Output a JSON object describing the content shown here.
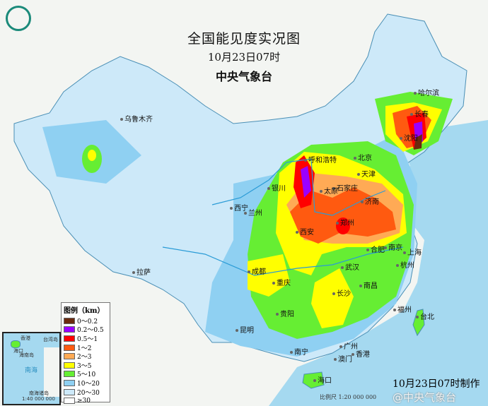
{
  "header": {
    "title": "全国能见度实况图",
    "time": "10月23日07时",
    "issuer": "中央气象台"
  },
  "logo": {
    "icon": "cma-logo-icon"
  },
  "legend": {
    "title": "图例（km）",
    "items": [
      {
        "label": "0～0.2",
        "color": "#6b2a0e"
      },
      {
        "label": "0.2～0.5",
        "color": "#9a00ff"
      },
      {
        "label": "0.5～1",
        "color": "#ff0000"
      },
      {
        "label": "1～2",
        "color": "#ff5a10"
      },
      {
        "label": "2～3",
        "color": "#ffaa55"
      },
      {
        "label": "3～5",
        "color": "#ffff00"
      },
      {
        "label": "5～10",
        "color": "#66ee33"
      },
      {
        "label": "10～20",
        "color": "#8fd0f2"
      },
      {
        "label": "20～30",
        "color": "#cde9f9"
      },
      {
        "label": "≥30",
        "color": "#ffffff"
      }
    ]
  },
  "cities": [
    {
      "name": "乌鲁木齐"
    },
    {
      "name": "哈尔滨"
    },
    {
      "name": "长春"
    },
    {
      "name": "沈阳"
    },
    {
      "name": "呼和浩特"
    },
    {
      "name": "北京"
    },
    {
      "name": "天津"
    },
    {
      "name": "银川"
    },
    {
      "name": "石家庄"
    },
    {
      "name": "太原"
    },
    {
      "name": "济南"
    },
    {
      "name": "西宁"
    },
    {
      "name": "兰州"
    },
    {
      "name": "西安"
    },
    {
      "name": "郑州"
    },
    {
      "name": "合肥"
    },
    {
      "name": "南京"
    },
    {
      "name": "上海"
    },
    {
      "name": "杭州"
    },
    {
      "name": "武汉"
    },
    {
      "name": "成都"
    },
    {
      "name": "重庆"
    },
    {
      "name": "拉萨"
    },
    {
      "name": "长沙"
    },
    {
      "name": "南昌"
    },
    {
      "name": "福州"
    },
    {
      "name": "台北"
    },
    {
      "name": "贵阳"
    },
    {
      "name": "昆明"
    },
    {
      "name": "南宁"
    },
    {
      "name": "广州"
    },
    {
      "name": "香港"
    },
    {
      "name": "澳门"
    },
    {
      "name": "海口"
    }
  ],
  "inset": {
    "labels": [
      "南海",
      "南海诸岛",
      "香港",
      "台湾岛",
      "海口",
      "海南岛"
    ],
    "scale": "1:40 000 000"
  },
  "footer": {
    "made": "10月23日07时制作",
    "scale": "比例尺 1:20 000 000",
    "watermark": "@中央气象台"
  }
}
